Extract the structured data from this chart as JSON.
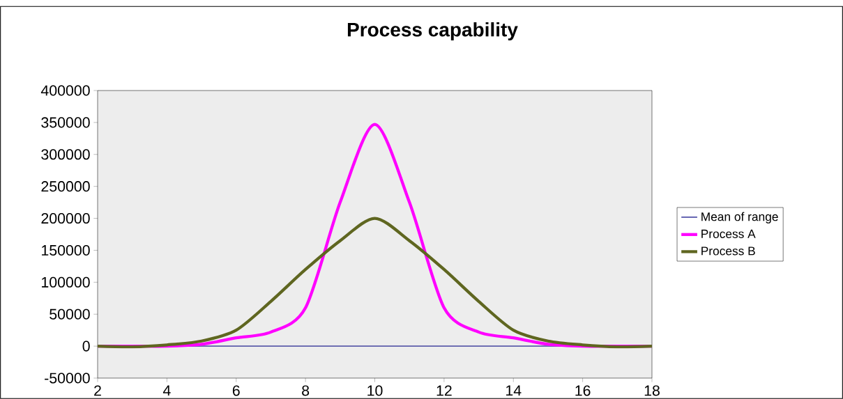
{
  "chart_data": {
    "type": "line",
    "title": "Process capability",
    "xlim": [
      2,
      18
    ],
    "xticks": [
      2,
      4,
      6,
      8,
      10,
      12,
      14,
      16,
      18
    ],
    "ylim": [
      -50000,
      400000
    ],
    "yticks": [
      -50000,
      0,
      50000,
      100000,
      150000,
      200000,
      250000,
      300000,
      350000,
      400000
    ],
    "legend": "right",
    "marker": "none",
    "series": [
      {
        "name": "Mean of range",
        "color": "#000080",
        "x": [
          2,
          18
        ],
        "values": [
          0,
          0
        ]
      },
      {
        "name": "Process A",
        "color": "#ff00ff",
        "x": [
          2,
          3,
          4,
          5,
          6,
          7,
          8,
          9,
          10,
          11,
          12,
          13,
          14,
          15,
          16,
          17,
          18
        ],
        "values": [
          0,
          0,
          0,
          3000,
          13000,
          22000,
          60000,
          225000,
          347000,
          225000,
          60000,
          22000,
          13000,
          3000,
          0,
          0,
          0
        ]
      },
      {
        "name": "Process B",
        "color": "#5f6620",
        "x": [
          2,
          3,
          4,
          5,
          6,
          7,
          8,
          9,
          10,
          11,
          12,
          13,
          14,
          15,
          16,
          17,
          18
        ],
        "values": [
          0,
          -1000,
          2000,
          8000,
          25000,
          70000,
          120000,
          165000,
          200000,
          165000,
          120000,
          70000,
          25000,
          8000,
          2000,
          -1000,
          0
        ]
      }
    ]
  }
}
